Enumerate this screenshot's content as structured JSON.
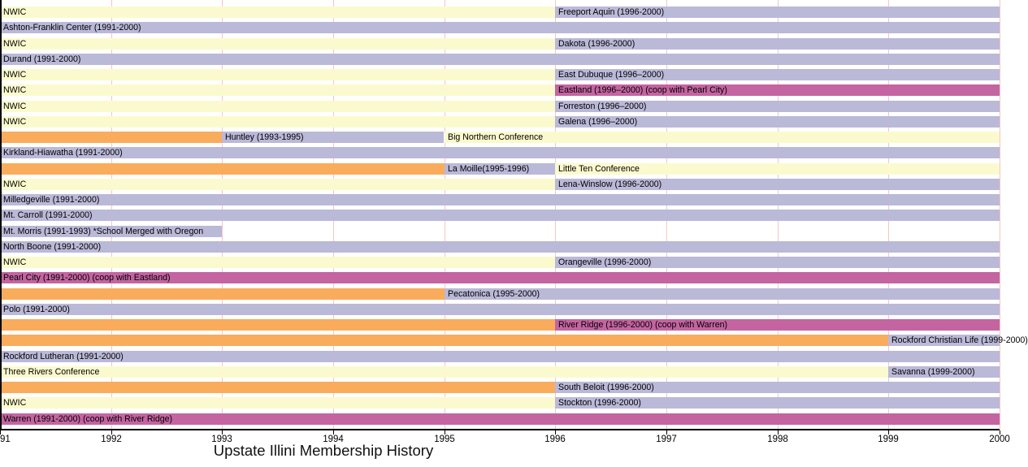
{
  "title": "Upstate Illini Membership History",
  "colors": {
    "yellow": "#fbface",
    "lavender": "#bbb9d8",
    "orange": "#f9ac5c",
    "magenta": "#c464a1",
    "gridline": "#f6c5c5",
    "axis": "#000000",
    "background": "#ffffff"
  },
  "axis": {
    "x_min_year": 1991,
    "x_max_year": 2000,
    "ticks": [
      {
        "year": 1991,
        "text": "91"
      },
      {
        "year": 1992,
        "text": "1992"
      },
      {
        "year": 1993,
        "text": "1993"
      },
      {
        "year": 1994,
        "text": "1994"
      },
      {
        "year": 1995,
        "text": "1995"
      },
      {
        "year": 1996,
        "text": "1996"
      },
      {
        "year": 1997,
        "text": "1997"
      },
      {
        "year": 1998,
        "text": "1998"
      },
      {
        "year": 1999,
        "text": "1999"
      },
      {
        "year": 2000,
        "text": "2000"
      }
    ]
  },
  "chart_data": {
    "type": "bar",
    "variant": "horizontal-gantt-timeline",
    "title": "Upstate Illini Membership History",
    "xlabel": "",
    "ylabel": "",
    "x_range": [
      1991,
      2000
    ],
    "grid": "vertical-yearly",
    "rows": [
      {
        "segments": [
          {
            "label": "NWIC",
            "start": 1991,
            "end": 1996,
            "color": "yellow"
          },
          {
            "label": "Freeport Aquin (1996-2000)",
            "start": 1996,
            "end": 2000,
            "color": "lavender"
          }
        ]
      },
      {
        "segments": [
          {
            "label": "Ashton-Franklin Center (1991-2000)",
            "start": 1991,
            "end": 2000,
            "color": "lavender"
          }
        ]
      },
      {
        "segments": [
          {
            "label": "NWIC",
            "start": 1991,
            "end": 1996,
            "color": "yellow"
          },
          {
            "label": "Dakota (1996-2000)",
            "start": 1996,
            "end": 2000,
            "color": "lavender"
          }
        ]
      },
      {
        "segments": [
          {
            "label": "Durand (1991-2000)",
            "start": 1991,
            "end": 2000,
            "color": "lavender"
          }
        ]
      },
      {
        "segments": [
          {
            "label": "NWIC",
            "start": 1991,
            "end": 1996,
            "color": "yellow"
          },
          {
            "label": "East Dubuque (1996–2000)",
            "start": 1996,
            "end": 2000,
            "color": "lavender"
          }
        ]
      },
      {
        "segments": [
          {
            "label": "NWIC",
            "start": 1991,
            "end": 1996,
            "color": "yellow"
          },
          {
            "label": "Eastland (1996–2000) (coop with Pearl City)",
            "start": 1996,
            "end": 2000,
            "color": "magenta"
          }
        ]
      },
      {
        "segments": [
          {
            "label": "NWIC",
            "start": 1991,
            "end": 1996,
            "color": "yellow"
          },
          {
            "label": "Forreston (1996–2000)",
            "start": 1996,
            "end": 2000,
            "color": "lavender"
          }
        ]
      },
      {
        "segments": [
          {
            "label": "NWIC",
            "start": 1991,
            "end": 1996,
            "color": "yellow"
          },
          {
            "label": "Galena (1996–2000)",
            "start": 1996,
            "end": 2000,
            "color": "lavender"
          }
        ]
      },
      {
        "segments": [
          {
            "label": "",
            "start": 1991,
            "end": 1993,
            "color": "orange"
          },
          {
            "label": "Huntley (1993-1995)",
            "start": 1993,
            "end": 1995,
            "color": "lavender"
          },
          {
            "label": "Big Northern Conference",
            "start": 1995,
            "end": 2000,
            "color": "yellow"
          }
        ]
      },
      {
        "segments": [
          {
            "label": "Kirkland-Hiawatha (1991-2000)",
            "start": 1991,
            "end": 2000,
            "color": "lavender"
          }
        ]
      },
      {
        "segments": [
          {
            "label": "",
            "start": 1991,
            "end": 1995,
            "color": "orange"
          },
          {
            "label": "La Moille(1995-1996)",
            "start": 1995,
            "end": 1996,
            "color": "lavender"
          },
          {
            "label": "Little Ten Conference",
            "start": 1996,
            "end": 2000,
            "color": "yellow"
          }
        ]
      },
      {
        "segments": [
          {
            "label": "NWIC",
            "start": 1991,
            "end": 1996,
            "color": "yellow"
          },
          {
            "label": "Lena-Winslow (1996-2000)",
            "start": 1996,
            "end": 2000,
            "color": "lavender"
          }
        ]
      },
      {
        "segments": [
          {
            "label": "Milledgeville (1991-2000)",
            "start": 1991,
            "end": 2000,
            "color": "lavender"
          }
        ]
      },
      {
        "segments": [
          {
            "label": "Mt. Carroll (1991-2000)",
            "start": 1991,
            "end": 2000,
            "color": "lavender"
          }
        ]
      },
      {
        "segments": [
          {
            "label": "Mt. Morris (1991-1993)  *School Merged with Oregon",
            "start": 1991,
            "end": 1993,
            "color": "lavender"
          }
        ]
      },
      {
        "segments": [
          {
            "label": "North Boone (1991-2000)",
            "start": 1991,
            "end": 2000,
            "color": "lavender"
          }
        ]
      },
      {
        "segments": [
          {
            "label": "NWIC",
            "start": 1991,
            "end": 1996,
            "color": "yellow"
          },
          {
            "label": "Orangeville (1996-2000)",
            "start": 1996,
            "end": 2000,
            "color": "lavender"
          }
        ]
      },
      {
        "segments": [
          {
            "label": "Pearl City (1991-2000) (coop with Eastland)",
            "start": 1991,
            "end": 2000,
            "color": "magenta"
          }
        ]
      },
      {
        "segments": [
          {
            "label": "",
            "start": 1991,
            "end": 1995,
            "color": "orange"
          },
          {
            "label": "Pecatonica (1995-2000)",
            "start": 1995,
            "end": 2000,
            "color": "lavender"
          }
        ]
      },
      {
        "segments": [
          {
            "label": "Polo (1991-2000)",
            "start": 1991,
            "end": 2000,
            "color": "lavender"
          }
        ]
      },
      {
        "segments": [
          {
            "label": "",
            "start": 1991,
            "end": 1996,
            "color": "orange"
          },
          {
            "label": "River Ridge (1996-2000) (coop with Warren)",
            "start": 1996,
            "end": 2000,
            "color": "magenta"
          }
        ]
      },
      {
        "segments": [
          {
            "label": "",
            "start": 1991,
            "end": 1999,
            "color": "orange"
          },
          {
            "label": "Rockford Christian Life (1999-2000)",
            "start": 1999,
            "end": 2000,
            "color": "lavender"
          }
        ]
      },
      {
        "segments": [
          {
            "label": "Rockford Lutheran (1991-2000)",
            "start": 1991,
            "end": 2000,
            "color": "lavender"
          }
        ]
      },
      {
        "segments": [
          {
            "label": "Three Rivers Conference",
            "start": 1991,
            "end": 1999,
            "color": "yellow"
          },
          {
            "label": "Savanna (1999-2000)",
            "start": 1999,
            "end": 2000,
            "color": "lavender"
          }
        ]
      },
      {
        "segments": [
          {
            "label": "",
            "start": 1991,
            "end": 1996,
            "color": "orange"
          },
          {
            "label": "South Beloit (1996-2000)",
            "start": 1996,
            "end": 2000,
            "color": "lavender"
          }
        ]
      },
      {
        "segments": [
          {
            "label": "NWIC",
            "start": 1991,
            "end": 1996,
            "color": "yellow"
          },
          {
            "label": "Stockton (1996-2000)",
            "start": 1996,
            "end": 2000,
            "color": "lavender"
          }
        ]
      },
      {
        "segments": [
          {
            "label": "Warren (1991-2000) (coop with River Ridge)",
            "start": 1991,
            "end": 2000,
            "color": "magenta"
          }
        ]
      }
    ]
  }
}
